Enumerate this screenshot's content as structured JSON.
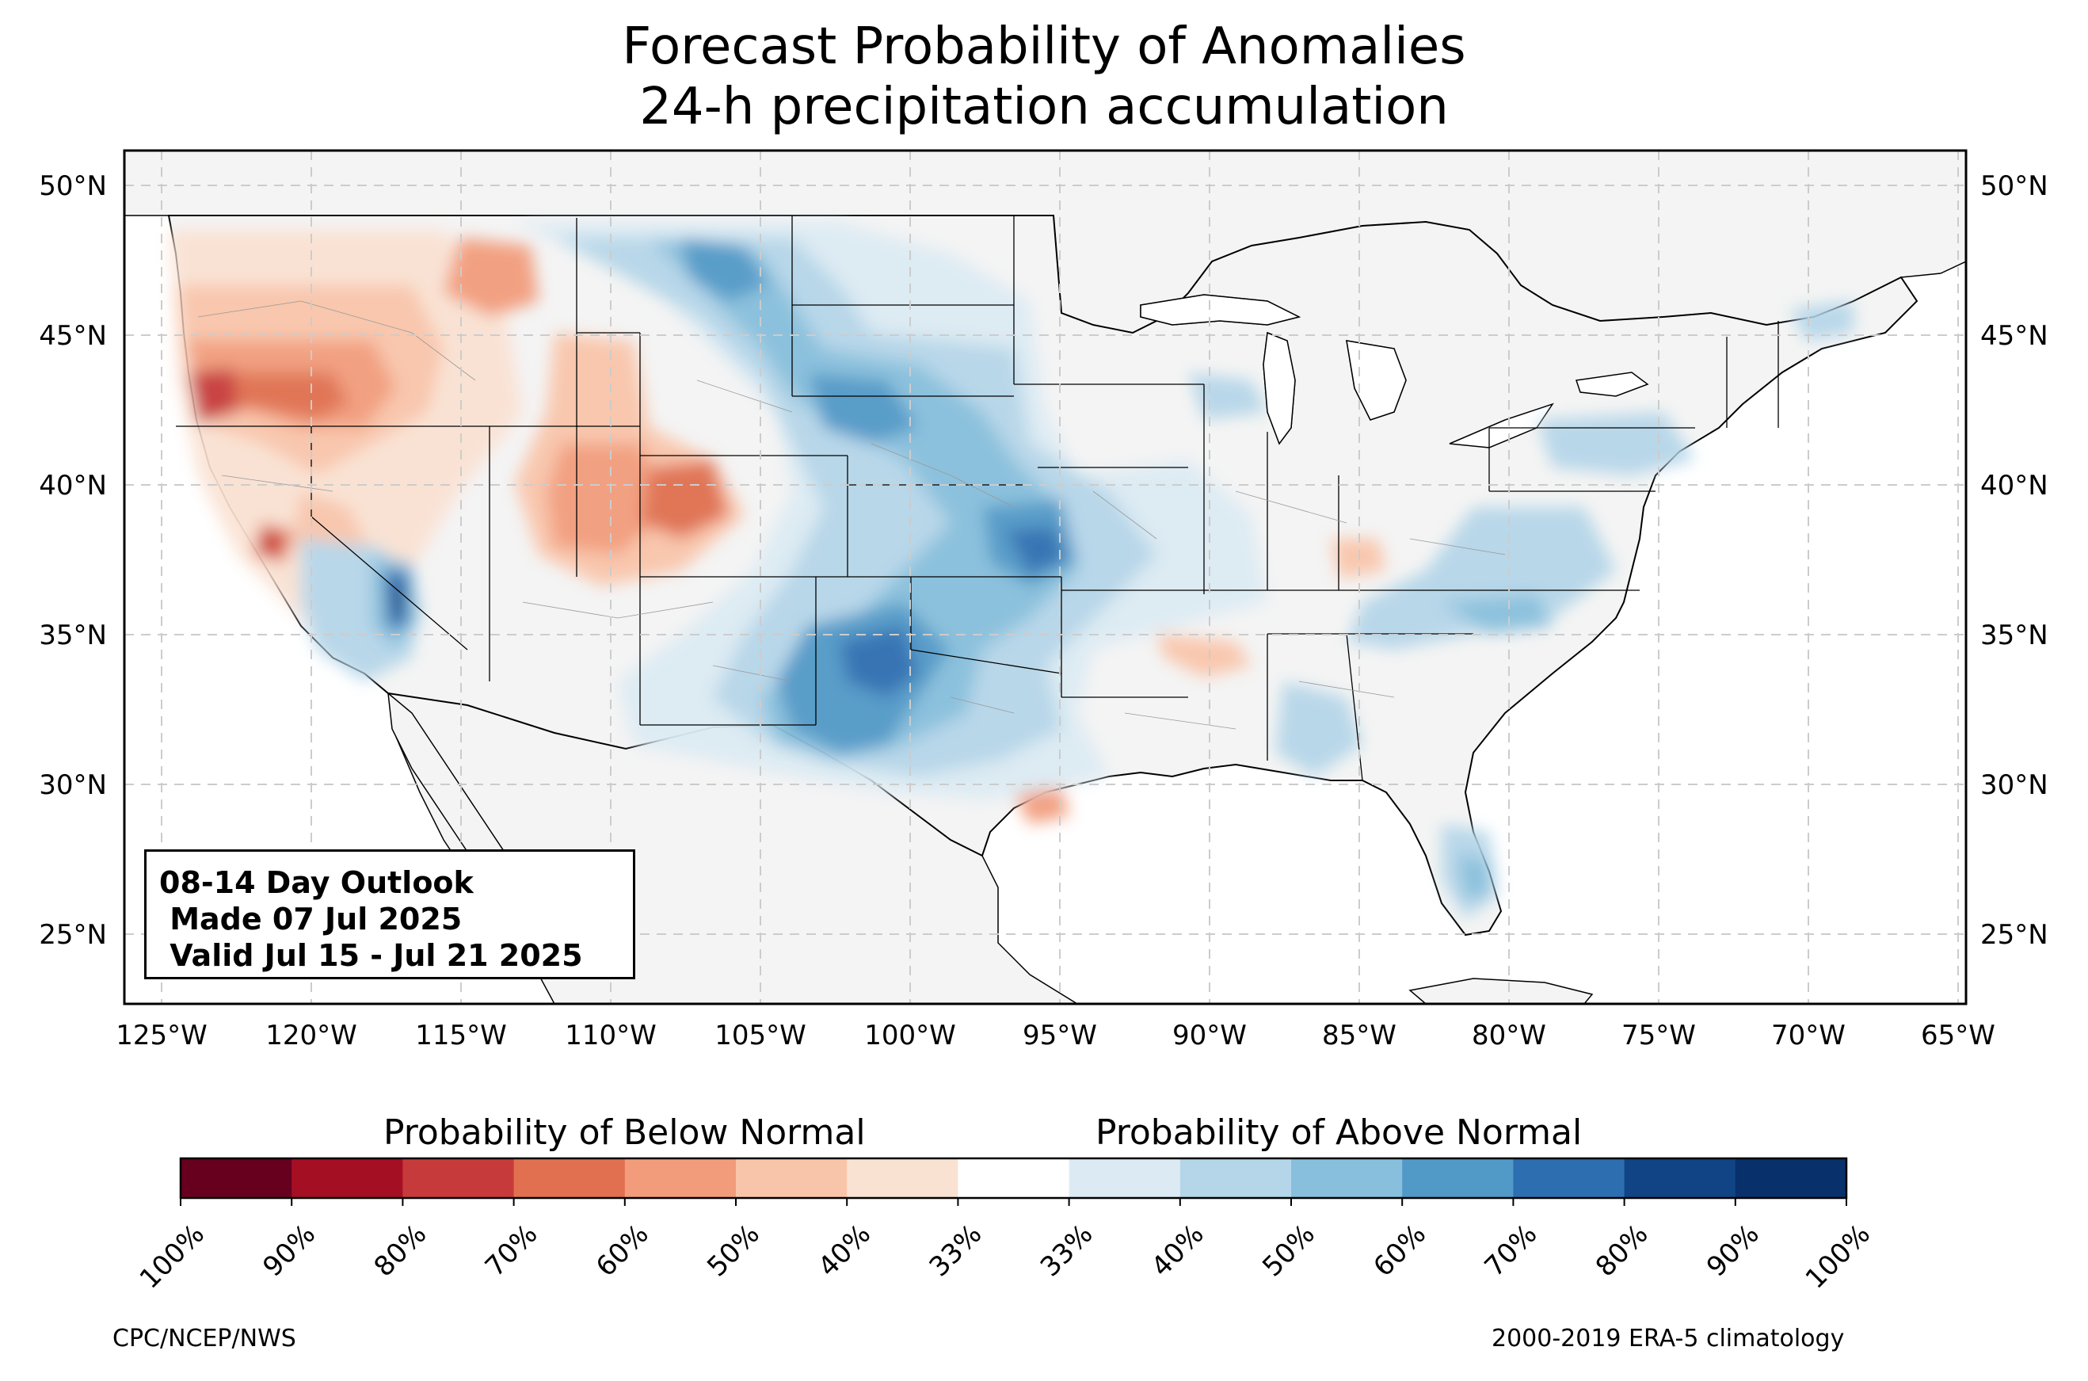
{
  "title": {
    "line1": "Forecast Probability of Anomalies",
    "line2": "24-h precipitation accumulation"
  },
  "map": {
    "lat_ticks": [
      "50°N",
      "45°N",
      "40°N",
      "35°N",
      "30°N",
      "25°N"
    ],
    "lon_ticks": [
      "125°W",
      "120°W",
      "115°W",
      "110°W",
      "105°W",
      "100°W",
      "95°W",
      "90°W",
      "85°W",
      "80°W",
      "75°W",
      "70°W",
      "65°W"
    ],
    "land_color": "#f4f4f4",
    "ocean_color": "#ffffff",
    "gridline_color": "#cccccc",
    "regions": [
      {
        "area": "Oregon / northern California",
        "category": "below",
        "max_probability": "80%"
      },
      {
        "area": "southern California Central Valley",
        "category": "below",
        "max_probability": "80%"
      },
      {
        "area": "Utah / western Colorado",
        "category": "below",
        "max_probability": "60%"
      },
      {
        "area": "Great Plains (Dakotas, Nebraska)",
        "category": "above",
        "max_probability": "60%"
      },
      {
        "area": "Kansas / Missouri",
        "category": "above",
        "max_probability": "70%"
      },
      {
        "area": "Texas / Oklahoma",
        "category": "above",
        "max_probability": "70%"
      },
      {
        "area": "southern California / Nevada",
        "category": "above",
        "max_probability": "80%"
      },
      {
        "area": "Florida peninsula",
        "category": "above",
        "max_probability": "60%"
      }
    ]
  },
  "infobox": {
    "line1": "08-14 Day Outlook",
    "line2": " Made 07 Jul 2025",
    "line3": " Valid Jul 15 - Jul 21 2025"
  },
  "colorbar": {
    "below_label": "Probability of Below Normal",
    "above_label": "Probability of Above Normal",
    "tick_labels": [
      "100%",
      "90%",
      "80%",
      "70%",
      "60%",
      "50%",
      "40%",
      "33%",
      "33%",
      "40%",
      "50%",
      "60%",
      "70%",
      "80%",
      "90%",
      "100%"
    ],
    "colors": [
      "#67001f",
      "#a50f23",
      "#c73a3b",
      "#e0704f",
      "#f29c7c",
      "#f9c5aa",
      "#fae2d3",
      "#ffffff",
      "#dcebf3",
      "#b5d6e9",
      "#87bfdc",
      "#5199c7",
      "#2d6eb1",
      "#104484",
      "#08306b"
    ]
  },
  "credits": {
    "left": "CPC/NCEP/NWS",
    "right": "2000-2019 ERA-5 climatology"
  }
}
